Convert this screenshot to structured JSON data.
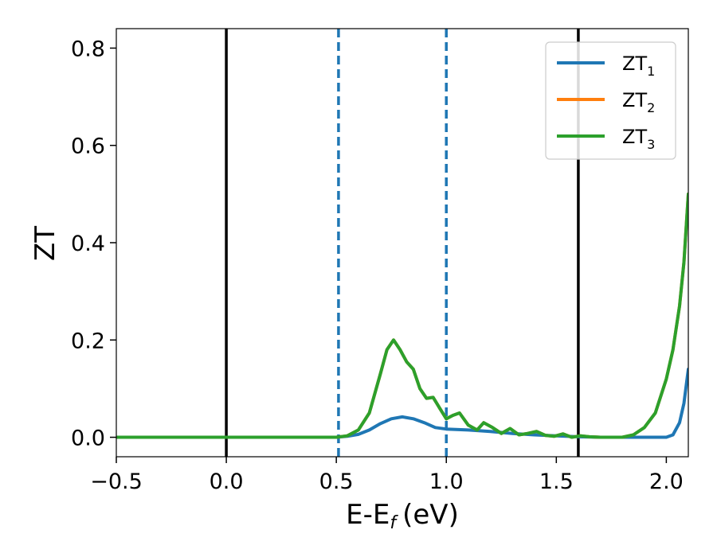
{
  "chart_data": {
    "type": "line",
    "xlabel": "E-E",
    "xlabel_sub": "f",
    "xlabel_unit": "(eV)",
    "ylabel": "ZT",
    "xlim": [
      -0.5,
      2.1
    ],
    "ylim": [
      -0.04,
      0.84
    ],
    "xticks": [
      {
        "value": -0.5,
        "label": "−0.5"
      },
      {
        "value": 0.0,
        "label": "0.0"
      },
      {
        "value": 0.5,
        "label": "0.5"
      },
      {
        "value": 1.0,
        "label": "1.0"
      },
      {
        "value": 1.5,
        "label": "1.5"
      },
      {
        "value": 2.0,
        "label": "2.0"
      }
    ],
    "yticks": [
      {
        "value": 0.0,
        "label": "0.0"
      },
      {
        "value": 0.2,
        "label": "0.2"
      },
      {
        "value": 0.4,
        "label": "0.4"
      },
      {
        "value": 0.6,
        "label": "0.6"
      },
      {
        "value": 0.8,
        "label": "0.8"
      }
    ],
    "grid": false,
    "legend_position": "top-right",
    "vlines": [
      {
        "x": 0.0,
        "style": "solid",
        "color": "#000000"
      },
      {
        "x": 1.6,
        "style": "solid",
        "color": "#000000"
      },
      {
        "x": 0.51,
        "style": "dashed",
        "color": "#1f77b4"
      },
      {
        "x": 1.0,
        "style": "dashed",
        "color": "#1f77b4"
      }
    ],
    "series": [
      {
        "name": "ZT",
        "name_sub": "1",
        "color": "#1f77b4",
        "x": [
          -0.5,
          0.5,
          0.55,
          0.6,
          0.65,
          0.7,
          0.75,
          0.8,
          0.85,
          0.9,
          0.95,
          1.0,
          1.1,
          1.2,
          1.3,
          1.4,
          1.5,
          1.6,
          1.7,
          1.8,
          1.9,
          1.95,
          2.0,
          2.03,
          2.06,
          2.08,
          2.1
        ],
        "y": [
          0.0,
          0.0,
          0.002,
          0.006,
          0.015,
          0.028,
          0.038,
          0.042,
          0.038,
          0.03,
          0.02,
          0.017,
          0.015,
          0.012,
          0.008,
          0.005,
          0.003,
          0.001,
          0.0,
          0.0,
          0.0,
          0.0,
          0.0,
          0.005,
          0.03,
          0.07,
          0.14
        ]
      },
      {
        "name": "ZT",
        "name_sub": "2",
        "color": "#ff7f0e",
        "x": [
          -0.5,
          0.5,
          0.55,
          0.6,
          0.65,
          0.7,
          0.73,
          0.76,
          0.79,
          0.82,
          0.85,
          0.88,
          0.91,
          0.94,
          0.97,
          1.0,
          1.03,
          1.06,
          1.1,
          1.14,
          1.17,
          1.21,
          1.25,
          1.29,
          1.33,
          1.37,
          1.41,
          1.45,
          1.49,
          1.53,
          1.57,
          1.61,
          1.65,
          1.7,
          1.8,
          1.85,
          1.9,
          1.95,
          2.0,
          2.03,
          2.06,
          2.08,
          2.1
        ],
        "y": [
          0.0,
          0.0,
          0.003,
          0.015,
          0.05,
          0.13,
          0.18,
          0.2,
          0.18,
          0.155,
          0.14,
          0.1,
          0.08,
          0.082,
          0.06,
          0.038,
          0.045,
          0.05,
          0.025,
          0.015,
          0.03,
          0.02,
          0.008,
          0.018,
          0.005,
          0.008,
          0.012,
          0.004,
          0.002,
          0.007,
          0.0,
          0.003,
          0.001,
          0.0,
          0.0,
          0.005,
          0.02,
          0.05,
          0.12,
          0.18,
          0.27,
          0.36,
          0.5
        ]
      },
      {
        "name": "ZT",
        "name_sub": "3",
        "color": "#2ca02c",
        "x": [
          -0.5,
          0.5,
          0.55,
          0.6,
          0.65,
          0.7,
          0.73,
          0.76,
          0.79,
          0.82,
          0.85,
          0.88,
          0.91,
          0.94,
          0.97,
          1.0,
          1.03,
          1.06,
          1.1,
          1.14,
          1.17,
          1.21,
          1.25,
          1.29,
          1.33,
          1.37,
          1.41,
          1.45,
          1.49,
          1.53,
          1.57,
          1.61,
          1.65,
          1.7,
          1.8,
          1.85,
          1.9,
          1.95,
          2.0,
          2.03,
          2.06,
          2.08,
          2.1
        ],
        "y": [
          0.0,
          0.0,
          0.003,
          0.015,
          0.05,
          0.13,
          0.18,
          0.2,
          0.18,
          0.155,
          0.14,
          0.1,
          0.08,
          0.082,
          0.06,
          0.038,
          0.045,
          0.05,
          0.025,
          0.015,
          0.03,
          0.02,
          0.008,
          0.018,
          0.005,
          0.008,
          0.012,
          0.004,
          0.002,
          0.007,
          0.0,
          0.003,
          0.001,
          0.0,
          0.0,
          0.005,
          0.02,
          0.05,
          0.12,
          0.18,
          0.27,
          0.36,
          0.5
        ]
      }
    ]
  }
}
